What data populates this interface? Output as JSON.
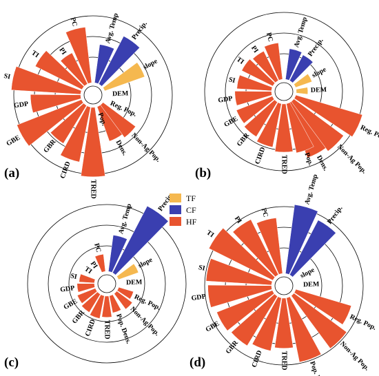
{
  "colors": {
    "TF": "#F5B84F",
    "CF": "#3A3FB0",
    "HF": "#E8542F"
  },
  "legend": [
    {
      "key": "TF",
      "label": "TF"
    },
    {
      "key": "CF",
      "label": "CF"
    },
    {
      "key": "HF",
      "label": "HF"
    }
  ],
  "chart_data": [
    {
      "panel": "(a)",
      "type": "polar-bar",
      "rings": 4,
      "bars": [
        {
          "label": "Avg. Temp",
          "group": "CF",
          "value": 2.0
        },
        {
          "label": "Precip.",
          "group": "CF",
          "value": 2.8
        },
        {
          "label": "slope",
          "group": "TF",
          "value": 2.2
        },
        {
          "label": "DEM",
          "group": "TF",
          "value": 0
        },
        {
          "label": "Reg. Pop.",
          "group": "HF",
          "value": 0
        },
        {
          "label": "Non-Ag Pop.",
          "group": "HF",
          "value": 2.1
        },
        {
          "label": "Dens.",
          "group": "HF",
          "value": 1.9
        },
        {
          "label": "Pop.",
          "group": "HF",
          "value": 0
        },
        {
          "label": "TRED",
          "group": "HF",
          "value": 3.6
        },
        {
          "label": "CIRD",
          "group": "HF",
          "value": 2.9
        },
        {
          "label": "GBR",
          "group": "HF",
          "value": 2.3
        },
        {
          "label": "GBE",
          "group": "HF",
          "value": 3.6
        },
        {
          "label": "GDP",
          "group": "HF",
          "value": 2.6
        },
        {
          "label": "SI",
          "group": "HF",
          "value": 3.6
        },
        {
          "label": "TI",
          "group": "HF",
          "value": 2.7
        },
        {
          "label": "PI",
          "group": "HF",
          "value": 1.8
        },
        {
          "label": "PC",
          "group": "HF",
          "value": 2.9
        }
      ]
    },
    {
      "panel": "(b)",
      "type": "polar-bar",
      "rings": 4,
      "bars": [
        {
          "label": "Avg. Temp",
          "group": "CF",
          "value": 1.6
        },
        {
          "label": "Precip.",
          "group": "CF",
          "value": 1.5
        },
        {
          "label": "slope",
          "group": "TF",
          "value": 0.9
        },
        {
          "label": "DEM",
          "group": "TF",
          "value": 0.6
        },
        {
          "label": "Reg. Pop.",
          "group": "HF",
          "value": 3.6
        },
        {
          "label": "Non-Ag Pop.",
          "group": "HF",
          "value": 3.2
        },
        {
          "label": "Dens.",
          "group": "HF",
          "value": 3.0
        },
        {
          "label": "Pop.",
          "group": "HF",
          "value": 2.6
        },
        {
          "label": "TRED",
          "group": "HF",
          "value": 2.5
        },
        {
          "label": "CIRD",
          "group": "HF",
          "value": 2.3
        },
        {
          "label": "GBR",
          "group": "HF",
          "value": 2.1
        },
        {
          "label": "GBE",
          "group": "HF",
          "value": 2.0
        },
        {
          "label": "GDP",
          "group": "HF",
          "value": 1.9
        },
        {
          "label": "SI",
          "group": "HF",
          "value": 1.8
        },
        {
          "label": "TI",
          "group": "HF",
          "value": 1.8
        },
        {
          "label": "PI",
          "group": "HF",
          "value": 1.7
        },
        {
          "label": "PC",
          "group": "HF",
          "value": 1.9
        }
      ]
    },
    {
      "panel": "(c)",
      "type": "polar-bar",
      "rings": 4,
      "bars": [
        {
          "label": "Avg. Temp",
          "group": "CF",
          "value": 1.9
        },
        {
          "label": "Precip.",
          "group": "CF",
          "value": 3.9
        },
        {
          "label": "slope",
          "group": "TF",
          "value": 1.1
        },
        {
          "label": "DEM",
          "group": "TF",
          "value": 0
        },
        {
          "label": "Reg. Pop.",
          "group": "HF",
          "value": 0.8
        },
        {
          "label": "Non-Ag Pop.",
          "group": "HF",
          "value": 1.0
        },
        {
          "label": "Pop. Dens.",
          "group": "HF",
          "value": 0.9
        },
        {
          "label": "TRED",
          "group": "HF",
          "value": 1.1
        },
        {
          "label": "CIRD",
          "group": "HF",
          "value": 1.2
        },
        {
          "label": "GBR",
          "group": "HF",
          "value": 1.1
        },
        {
          "label": "GBE",
          "group": "HF",
          "value": 1.0
        },
        {
          "label": "GDP",
          "group": "HF",
          "value": 0.9
        },
        {
          "label": "SI",
          "group": "HF",
          "value": 0.8
        },
        {
          "label": "TI",
          "group": "HF",
          "value": 0
        },
        {
          "label": "PI",
          "group": "HF",
          "value": 0
        },
        {
          "label": "PC",
          "group": "HF",
          "value": 0.9
        }
      ]
    },
    {
      "panel": "(d)",
      "type": "polar-bar",
      "rings": 4,
      "bars": [
        {
          "label": "Avg. Temp",
          "group": "CF",
          "value": 3.6
        },
        {
          "label": "Precip.",
          "group": "CF",
          "value": 3.2
        },
        {
          "label": "slope",
          "group": "TF",
          "value": 0
        },
        {
          "label": "DEM",
          "group": "TF",
          "value": 0
        },
        {
          "label": "Reg. Pop.",
          "group": "HF",
          "value": 3.0
        },
        {
          "label": "Non-Ag Pop.",
          "group": "HF",
          "value": 3.4
        },
        {
          "label": "Pop. Dens.",
          "group": "HF",
          "value": 3.4
        },
        {
          "label": "TRED",
          "group": "HF",
          "value": 2.6
        },
        {
          "label": "CIRD",
          "group": "HF",
          "value": 2.8
        },
        {
          "label": "GBR",
          "group": "HF",
          "value": 3.0
        },
        {
          "label": "GBE",
          "group": "HF",
          "value": 3.1
        },
        {
          "label": "GDP",
          "group": "HF",
          "value": 3.3
        },
        {
          "label": "SI",
          "group": "HF",
          "value": 3.4
        },
        {
          "label": "TI",
          "group": "HF",
          "value": 3.7
        },
        {
          "label": "PI",
          "group": "HF",
          "value": 3.2
        },
        {
          "label": "PC",
          "group": "HF",
          "value": 2.9
        }
      ]
    }
  ]
}
